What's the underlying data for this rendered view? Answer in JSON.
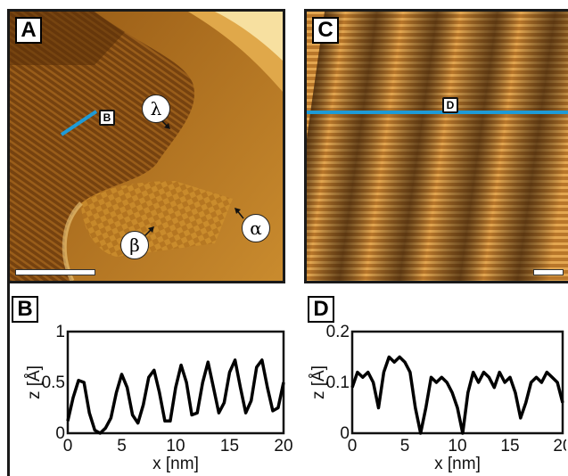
{
  "panels": {
    "A": {
      "label": "A",
      "profile_tag": "B",
      "markers": {
        "lambda": "λ",
        "beta": "β",
        "alpha": "α"
      }
    },
    "C": {
      "label": "C",
      "profile_tag": "D"
    }
  },
  "colors": {
    "profile_line": "#1e9bd7",
    "stm_dark": "#3a1f05",
    "stm_mid": "#a0621a",
    "stm_light": "#f4c76a"
  },
  "chart_data": [
    {
      "type": "line",
      "panel_label": "B",
      "xlabel": "x [nm]",
      "ylabel": "z [Å]",
      "xlim": [
        0,
        20
      ],
      "ylim": [
        0,
        1
      ],
      "xticks": [
        "0",
        "5",
        "10",
        "15",
        "20"
      ],
      "yticks": [
        "0",
        "0.5",
        "1"
      ],
      "x": [
        0,
        0.5,
        1.0,
        1.5,
        2.0,
        2.5,
        3.0,
        3.5,
        4.0,
        4.5,
        5.0,
        5.5,
        6.0,
        6.5,
        7.0,
        7.5,
        8.0,
        8.5,
        9.0,
        9.5,
        10.0,
        10.5,
        11.0,
        11.5,
        12.0,
        12.5,
        13.0,
        13.5,
        14.0,
        14.5,
        15.0,
        15.5,
        16.0,
        16.5,
        17.0,
        17.5,
        18.0,
        18.5,
        19.0,
        19.5,
        20.0
      ],
      "y": [
        0.12,
        0.35,
        0.52,
        0.5,
        0.2,
        0.03,
        0.0,
        0.05,
        0.15,
        0.4,
        0.58,
        0.45,
        0.18,
        0.1,
        0.28,
        0.55,
        0.62,
        0.4,
        0.12,
        0.12,
        0.45,
        0.67,
        0.5,
        0.18,
        0.2,
        0.5,
        0.7,
        0.45,
        0.2,
        0.3,
        0.6,
        0.72,
        0.45,
        0.2,
        0.32,
        0.65,
        0.72,
        0.45,
        0.22,
        0.25,
        0.5
      ]
    },
    {
      "type": "line",
      "panel_label": "D",
      "xlabel": "x [nm]",
      "ylabel": "z [Å]",
      "xlim": [
        0,
        20
      ],
      "ylim": [
        0,
        0.2
      ],
      "xticks": [
        "0",
        "5",
        "10",
        "15",
        "20"
      ],
      "yticks": [
        "0",
        "0.1",
        "0.2"
      ],
      "x": [
        0,
        0.5,
        1.0,
        1.5,
        2.0,
        2.5,
        3.0,
        3.5,
        4.0,
        4.5,
        5.0,
        5.5,
        6.0,
        6.5,
        7.0,
        7.5,
        8.0,
        8.5,
        9.0,
        9.5,
        10.0,
        10.5,
        11.0,
        11.5,
        12.0,
        12.5,
        13.0,
        13.5,
        14.0,
        14.5,
        15.0,
        15.5,
        16.0,
        16.5,
        17.0,
        17.5,
        18.0,
        18.5,
        19.0,
        19.5,
        20.0
      ],
      "y": [
        0.09,
        0.12,
        0.11,
        0.12,
        0.1,
        0.05,
        0.12,
        0.15,
        0.14,
        0.15,
        0.14,
        0.12,
        0.05,
        0.0,
        0.05,
        0.11,
        0.1,
        0.11,
        0.1,
        0.08,
        0.05,
        0.0,
        0.08,
        0.12,
        0.1,
        0.12,
        0.11,
        0.09,
        0.12,
        0.1,
        0.11,
        0.08,
        0.03,
        0.06,
        0.1,
        0.11,
        0.1,
        0.12,
        0.11,
        0.1,
        0.06
      ]
    }
  ]
}
